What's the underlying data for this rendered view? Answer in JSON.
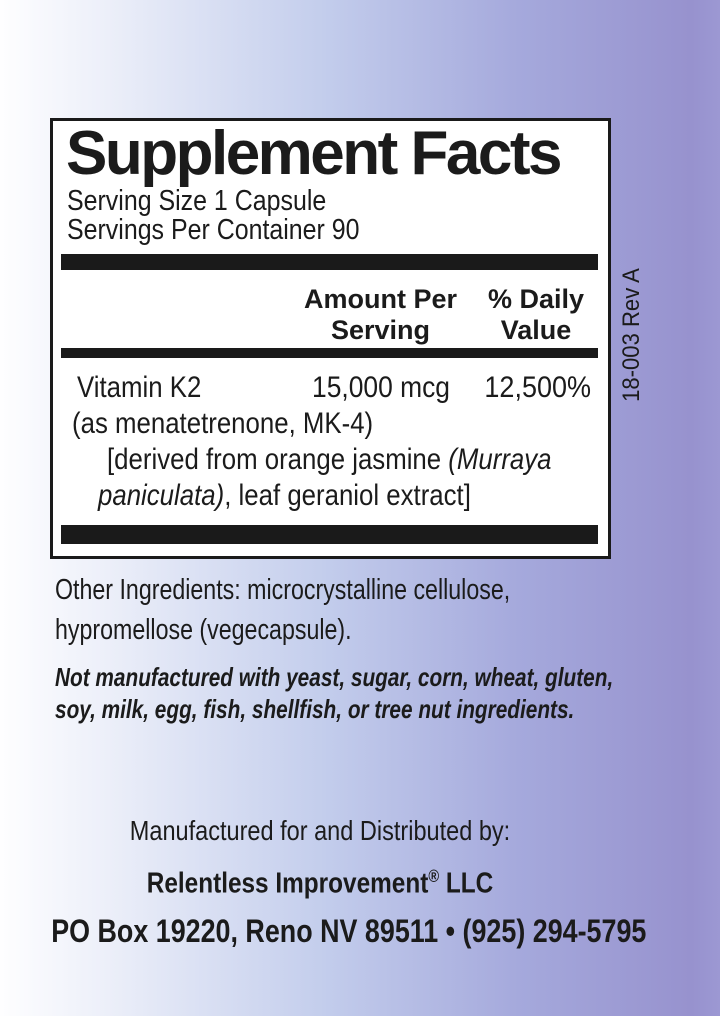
{
  "background": {
    "gradient_left": "#fefeff",
    "gradient_right": "#9792ce",
    "panel_bg": "#ffffff",
    "ink": "#1a1a1a"
  },
  "rev_code": "18-003 Rev A",
  "supplement_facts": {
    "title": "Supplement Facts",
    "serving_size": "Serving Size 1 Capsule",
    "servings_per_container": "Servings Per Container 90",
    "columns": {
      "amount_line1": "Amount Per",
      "amount_line2": "Serving",
      "daily_line1": "% Daily",
      "daily_line2": "Value"
    },
    "rows": [
      {
        "name": "Vitamin K2",
        "amount": "15,000 mcg",
        "daily_value": "12,500%",
        "sub": "(as menatetrenone, MK-4)",
        "derived_line1_plain": "[derived from orange jasmine ",
        "derived_line1_italic": "(Murraya",
        "derived_line2_italic": "paniculata)",
        "derived_line2_plain": ", leaf geraniol extract]"
      }
    ]
  },
  "other_ingredients": {
    "line1": "Other Ingredients: microcrystalline cellulose,",
    "line2": "hypromellose (vegecapsule)."
  },
  "allergen_statement": {
    "line1": "Not manufactured with yeast, sugar, corn, wheat, gluten,",
    "line2": "soy, milk, egg, fish, shellfish, or tree nut ingredients."
  },
  "footer": {
    "distributed_by": "Manufactured for and Distributed by:",
    "company": "Relentless Improvement",
    "registered_mark": "®",
    "company_suffix": " LLC",
    "address_phone": "PO Box 19220, Reno NV 89511 • (925) 294-5795"
  }
}
